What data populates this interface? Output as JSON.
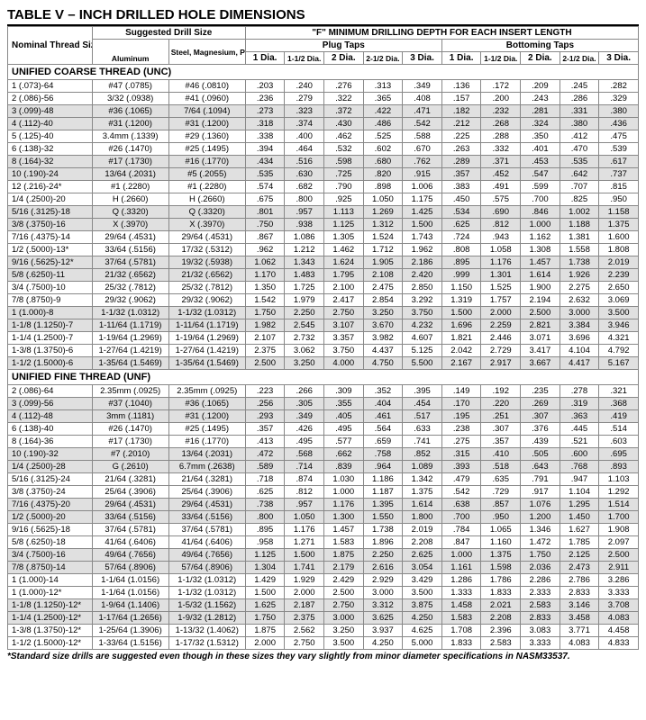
{
  "title": "TABLE V – INCH DRILLED HOLE DIMENSIONS",
  "headers": {
    "nominal": "Nominal Thread Size",
    "suggested": "Suggested Drill Size",
    "fdepth": "\"F\" MINIMUM DRILLING DEPTH FOR EACH INSERT LENGTH",
    "alum": "Aluminum",
    "steel": "Steel, Magnesium, Plastic",
    "plug": "Plug Taps",
    "bottom": "Bottoming Taps",
    "dia1": "1 Dia.",
    "dia15": "1-1/2 Dia.",
    "dia2": "2 Dia.",
    "dia25": "2-1/2 Dia.",
    "dia3": "3 Dia."
  },
  "section_unc": "UNIFIED COARSE THREAD (UNC)",
  "section_unf": "UNIFIED FINE THREAD (UNF)",
  "footnote": "*Standard size drills are suggested even though in these sizes they vary slightly from minor diameter specifications in NASM33537.",
  "unc": [
    {
      "n": "1 (.073)-64",
      "a": "#47 (.0785)",
      "s": "#46 (.0810)",
      "p": [
        ".203",
        ".240",
        ".276",
        ".313",
        ".349"
      ],
      "b": [
        ".136",
        ".172",
        ".209",
        ".245",
        ".282"
      ]
    },
    {
      "n": "2 (.086)-56",
      "a": "3/32 (.0938)",
      "s": "#41 (.0960)",
      "p": [
        ".236",
        ".279",
        ".322",
        ".365",
        ".408"
      ],
      "b": [
        ".157",
        ".200",
        ".243",
        ".286",
        ".329"
      ]
    },
    {
      "n": "3 (.099)-48",
      "a": "#36 (.1065)",
      "s": "7/64 (.1094)",
      "p": [
        ".273",
        ".323",
        ".372",
        ".422",
        ".471"
      ],
      "b": [
        ".182",
        ".232",
        ".281",
        ".331",
        ".380"
      ]
    },
    {
      "n": "4 (.112)-40",
      "a": "#31 (.1200)",
      "s": "#31 (.1200)",
      "p": [
        ".318",
        ".374",
        ".430",
        ".486",
        ".542"
      ],
      "b": [
        ".212",
        ".268",
        ".324",
        ".380",
        ".436"
      ]
    },
    {
      "n": "5 (.125)-40",
      "a": "3.4mm (.1339)",
      "s": "#29 (.1360)",
      "p": [
        ".338",
        ".400",
        ".462",
        ".525",
        ".588"
      ],
      "b": [
        ".225",
        ".288",
        ".350",
        ".412",
        ".475"
      ]
    },
    {
      "n": "6 (.138)-32",
      "a": "#26 (.1470)",
      "s": "#25 (.1495)",
      "p": [
        ".394",
        ".464",
        ".532",
        ".602",
        ".670"
      ],
      "b": [
        ".263",
        ".332",
        ".401",
        ".470",
        ".539"
      ]
    },
    {
      "n": "8 (.164)-32",
      "a": "#17 (.1730)",
      "s": "#16 (.1770)",
      "p": [
        ".434",
        ".516",
        ".598",
        ".680",
        ".762"
      ],
      "b": [
        ".289",
        ".371",
        ".453",
        ".535",
        ".617"
      ]
    },
    {
      "n": "10 (.190)-24",
      "a": "13/64 (.2031)",
      "s": "#5 (.2055)",
      "p": [
        ".535",
        ".630",
        ".725",
        ".820",
        ".915"
      ],
      "b": [
        ".357",
        ".452",
        ".547",
        ".642",
        ".737"
      ]
    },
    {
      "n": "12 (.216)-24*",
      "a": "#1 (.2280)",
      "s": "#1 (.2280)",
      "p": [
        ".574",
        ".682",
        ".790",
        ".898",
        "1.006"
      ],
      "b": [
        ".383",
        ".491",
        ".599",
        ".707",
        ".815"
      ]
    },
    {
      "n": "1/4 (.2500)-20",
      "a": "H (.2660)",
      "s": "H (.2660)",
      "p": [
        ".675",
        ".800",
        ".925",
        "1.050",
        "1.175"
      ],
      "b": [
        ".450",
        ".575",
        ".700",
        ".825",
        ".950"
      ]
    },
    {
      "n": "5/16 (.3125)-18",
      "a": "Q (.3320)",
      "s": "Q (.3320)",
      "p": [
        ".801",
        ".957",
        "1.113",
        "1.269",
        "1.425"
      ],
      "b": [
        ".534",
        ".690",
        ".846",
        "1.002",
        "1.158"
      ]
    },
    {
      "n": "3/8 (.3750)-16",
      "a": "X (.3970)",
      "s": "X (.3970)",
      "p": [
        ".750",
        ".938",
        "1.125",
        "1.312",
        "1.500"
      ],
      "b": [
        ".625",
        ".812",
        "1.000",
        "1.188",
        "1.375"
      ]
    },
    {
      "n": "7/16 (.4375)-14",
      "a": "29/64 (.4531)",
      "s": "29/64 (.4531)",
      "p": [
        ".867",
        "1.086",
        "1.305",
        "1.524",
        "1.743"
      ],
      "b": [
        ".724",
        ".943",
        "1.162",
        "1.381",
        "1.600"
      ]
    },
    {
      "n": "1/2 (.5000)-13*",
      "a": "33/64 (.5156)",
      "s": "17/32 (.5312)",
      "p": [
        ".962",
        "1.212",
        "1.462",
        "1.712",
        "1.962"
      ],
      "b": [
        ".808",
        "1.058",
        "1.308",
        "1.558",
        "1.808"
      ]
    },
    {
      "n": "9/16 (.5625)-12*",
      "a": "37/64 (.5781)",
      "s": "19/32 (.5938)",
      "p": [
        "1.062",
        "1.343",
        "1.624",
        "1.905",
        "2.186"
      ],
      "b": [
        ".895",
        "1.176",
        "1.457",
        "1.738",
        "2.019"
      ]
    },
    {
      "n": "5/8 (.6250)-11",
      "a": "21/32 (.6562)",
      "s": "21/32 (.6562)",
      "p": [
        "1.170",
        "1.483",
        "1.795",
        "2.108",
        "2.420"
      ],
      "b": [
        ".999",
        "1.301",
        "1.614",
        "1.926",
        "2.239"
      ]
    },
    {
      "n": "3/4 (.7500)-10",
      "a": "25/32 (.7812)",
      "s": "25/32 (.7812)",
      "p": [
        "1.350",
        "1.725",
        "2.100",
        "2.475",
        "2.850"
      ],
      "b": [
        "1.150",
        "1.525",
        "1.900",
        "2.275",
        "2.650"
      ]
    },
    {
      "n": "7/8 (.8750)-9",
      "a": "29/32 (.9062)",
      "s": "29/32 (.9062)",
      "p": [
        "1.542",
        "1.979",
        "2.417",
        "2.854",
        "3.292"
      ],
      "b": [
        "1.319",
        "1.757",
        "2.194",
        "2.632",
        "3.069"
      ]
    },
    {
      "n": "1 (1.000)-8",
      "a": "1-1/32 (1.0312)",
      "s": "1-1/32 (1.0312)",
      "p": [
        "1.750",
        "2.250",
        "2.750",
        "3.250",
        "3.750"
      ],
      "b": [
        "1.500",
        "2.000",
        "2.500",
        "3.000",
        "3.500"
      ]
    },
    {
      "n": "1-1/8 (1.1250)-7",
      "a": "1-11/64 (1.1719)",
      "s": "1-11/64 (1.1719)",
      "p": [
        "1.982",
        "2.545",
        "3.107",
        "3.670",
        "4.232"
      ],
      "b": [
        "1.696",
        "2.259",
        "2.821",
        "3.384",
        "3.946"
      ]
    },
    {
      "n": "1-1/4 (1.2500)-7",
      "a": "1-19/64 (1.2969)",
      "s": "1-19/64 (1.2969)",
      "p": [
        "2.107",
        "2.732",
        "3.357",
        "3.982",
        "4.607"
      ],
      "b": [
        "1.821",
        "2.446",
        "3.071",
        "3.696",
        "4.321"
      ]
    },
    {
      "n": "1-3/8 (1.3750)-6",
      "a": "1-27/64 (1.4219)",
      "s": "1-27/64 (1.4219)",
      "p": [
        "2.375",
        "3.062",
        "3.750",
        "4.437",
        "5.125"
      ],
      "b": [
        "2.042",
        "2.729",
        "3.417",
        "4.104",
        "4.792"
      ]
    },
    {
      "n": "1-1/2 (1.5000)-6",
      "a": "1-35/64 (1.5469)",
      "s": "1-35/64 (1.5469)",
      "p": [
        "2.500",
        "3.250",
        "4.000",
        "4.750",
        "5.500"
      ],
      "b": [
        "2.167",
        "2.917",
        "3.667",
        "4.417",
        "5.167"
      ]
    }
  ],
  "unf": [
    {
      "n": "2 (.086)-64",
      "a": "2.35mm (.0925)",
      "s": "2.35mm (.0925)",
      "p": [
        ".223",
        ".266",
        ".309",
        ".352",
        ".395"
      ],
      "b": [
        ".149",
        ".192",
        ".235",
        ".278",
        ".321"
      ]
    },
    {
      "n": "3 (.099)-56",
      "a": "#37 (.1040)",
      "s": "#36 (.1065)",
      "p": [
        ".256",
        ".305",
        ".355",
        ".404",
        ".454"
      ],
      "b": [
        ".170",
        ".220",
        ".269",
        ".319",
        ".368"
      ]
    },
    {
      "n": "4 (.112)-48",
      "a": "3mm (.1181)",
      "s": "#31 (.1200)",
      "p": [
        ".293",
        ".349",
        ".405",
        ".461",
        ".517"
      ],
      "b": [
        ".195",
        ".251",
        ".307",
        ".363",
        ".419"
      ]
    },
    {
      "n": "6 (.138)-40",
      "a": "#26 (.1470)",
      "s": "#25 (.1495)",
      "p": [
        ".357",
        ".426",
        ".495",
        ".564",
        ".633"
      ],
      "b": [
        ".238",
        ".307",
        ".376",
        ".445",
        ".514"
      ]
    },
    {
      "n": "8 (.164)-36",
      "a": "#17 (.1730)",
      "s": "#16 (.1770)",
      "p": [
        ".413",
        ".495",
        ".577",
        ".659",
        ".741"
      ],
      "b": [
        ".275",
        ".357",
        ".439",
        ".521",
        ".603"
      ]
    },
    {
      "n": "10 (.190)-32",
      "a": "#7 (.2010)",
      "s": "13/64 (.2031)",
      "p": [
        ".472",
        ".568",
        ".662",
        ".758",
        ".852"
      ],
      "b": [
        ".315",
        ".410",
        ".505",
        ".600",
        ".695"
      ]
    },
    {
      "n": "1/4 (.2500)-28",
      "a": "G (.2610)",
      "s": "6.7mm (.2638)",
      "p": [
        ".589",
        ".714",
        ".839",
        ".964",
        "1.089"
      ],
      "b": [
        ".393",
        ".518",
        ".643",
        ".768",
        ".893"
      ]
    },
    {
      "n": "5/16 (.3125)-24",
      "a": "21/64 (.3281)",
      "s": "21/64 (.3281)",
      "p": [
        ".718",
        ".874",
        "1.030",
        "1.186",
        "1.342"
      ],
      "b": [
        ".479",
        ".635",
        ".791",
        ".947",
        "1.103"
      ]
    },
    {
      "n": "3/8 (.3750)-24",
      "a": "25/64 (.3906)",
      "s": "25/64 (.3906)",
      "p": [
        ".625",
        ".812",
        "1.000",
        "1.187",
        "1.375"
      ],
      "b": [
        ".542",
        ".729",
        ".917",
        "1.104",
        "1.292"
      ]
    },
    {
      "n": "7/16 (.4375)-20",
      "a": "29/64 (.4531)",
      "s": "29/64 (.4531)",
      "p": [
        ".738",
        ".957",
        "1.176",
        "1.395",
        "1.614"
      ],
      "b": [
        ".638",
        ".857",
        "1.076",
        "1.295",
        "1.514"
      ]
    },
    {
      "n": "1/2 (.5000)-20",
      "a": "33/64 (.5156)",
      "s": "33/64 (.5156)",
      "p": [
        ".800",
        "1.050",
        "1.300",
        "1.550",
        "1.800"
      ],
      "b": [
        ".700",
        ".950",
        "1.200",
        "1.450",
        "1.700"
      ]
    },
    {
      "n": "9/16 (.5625)-18",
      "a": "37/64 (.5781)",
      "s": "37/64 (.5781)",
      "p": [
        ".895",
        "1.176",
        "1.457",
        "1.738",
        "2.019"
      ],
      "b": [
        ".784",
        "1.065",
        "1.346",
        "1.627",
        "1.908"
      ]
    },
    {
      "n": "5/8 (.6250)-18",
      "a": "41/64 (.6406)",
      "s": "41/64 (.6406)",
      "p": [
        ".958",
        "1.271",
        "1.583",
        "1.896",
        "2.208"
      ],
      "b": [
        ".847",
        "1.160",
        "1.472",
        "1.785",
        "2.097"
      ]
    },
    {
      "n": "3/4 (.7500)-16",
      "a": "49/64 (.7656)",
      "s": "49/64 (.7656)",
      "p": [
        "1.125",
        "1.500",
        "1.875",
        "2.250",
        "2.625"
      ],
      "b": [
        "1.000",
        "1.375",
        "1.750",
        "2.125",
        "2.500"
      ]
    },
    {
      "n": "7/8 (.8750)-14",
      "a": "57/64 (.8906)",
      "s": "57/64 (.8906)",
      "p": [
        "1.304",
        "1.741",
        "2.179",
        "2.616",
        "3.054"
      ],
      "b": [
        "1.161",
        "1.598",
        "2.036",
        "2.473",
        "2.911"
      ]
    },
    {
      "n": "1 (1.000)-14",
      "a": "1-1/64 (1.0156)",
      "s": "1-1/32 (1.0312)",
      "p": [
        "1.429",
        "1.929",
        "2.429",
        "2.929",
        "3.429"
      ],
      "b": [
        "1.286",
        "1.786",
        "2.286",
        "2.786",
        "3.286"
      ]
    },
    {
      "n": "1 (1.000)-12*",
      "a": "1-1/64 (1.0156)",
      "s": "1-1/32 (1.0312)",
      "p": [
        "1.500",
        "2.000",
        "2.500",
        "3.000",
        "3.500"
      ],
      "b": [
        "1.333",
        "1.833",
        "2.333",
        "2.833",
        "3.333"
      ]
    },
    {
      "n": "1-1/8 (1.1250)-12*",
      "a": "1-9/64 (1.1406)",
      "s": "1-5/32 (1.1562)",
      "p": [
        "1.625",
        "2.187",
        "2.750",
        "3.312",
        "3.875"
      ],
      "b": [
        "1.458",
        "2.021",
        "2.583",
        "3.146",
        "3.708"
      ]
    },
    {
      "n": "1-1/4 (1.2500)-12*",
      "a": "1-17/64 (1.2656)",
      "s": "1-9/32 (1.2812)",
      "p": [
        "1.750",
        "2.375",
        "3.000",
        "3.625",
        "4.250"
      ],
      "b": [
        "1.583",
        "2.208",
        "2.833",
        "3.458",
        "4.083"
      ]
    },
    {
      "n": "1-3/8 (1.3750)-12*",
      "a": "1-25/64 (1.3906)",
      "s": "1-13/32 (1.4062)",
      "p": [
        "1.875",
        "2.562",
        "3.250",
        "3.937",
        "4.625"
      ],
      "b": [
        "1.708",
        "2.396",
        "3.083",
        "3.771",
        "4.458"
      ]
    },
    {
      "n": "1-1/2 (1.5000)-12*",
      "a": "1-33/64 (1.5156)",
      "s": "1-17/32 (1.5312)",
      "p": [
        "2.000",
        "2.750",
        "3.500",
        "4.250",
        "5.000"
      ],
      "b": [
        "1.833",
        "2.583",
        "3.333",
        "4.083",
        "4.833"
      ]
    }
  ]
}
